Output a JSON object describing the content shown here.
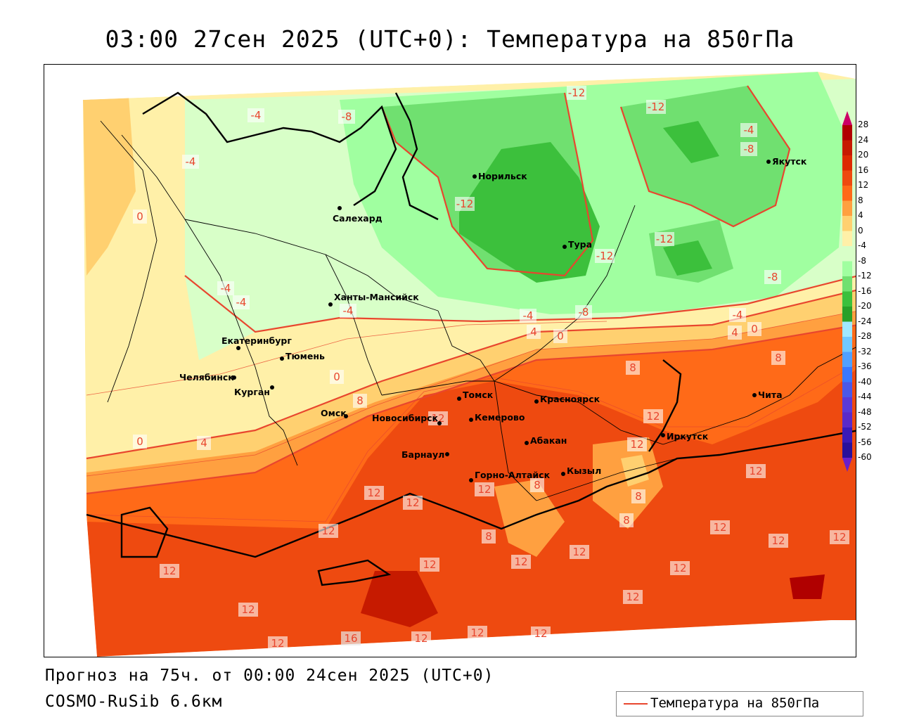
{
  "title": "03:00 27сен 2025 (UTC+0): Температура на 850гПа",
  "forecast_line": "Прогноз на 75ч. от 00:00 24сен 2025 (UTC+0)",
  "model_line": "COSMO-RuSib 6.6км",
  "legend_label": "Температура на 850гПа",
  "colors": {
    "isoline": "#e8462e",
    "scale_top": "#cc0066",
    "scale_bottom": "#6a1fc9"
  },
  "scale": {
    "values": [
      "28",
      "24",
      "20",
      "16",
      "12",
      "8",
      "4",
      "0",
      "-4",
      "-8",
      "-12",
      "-16",
      "-20",
      "-24",
      "-28",
      "-32",
      "-36",
      "-40",
      "-44",
      "-48",
      "-52",
      "-56",
      "-60"
    ],
    "colors": [
      "#b00000",
      "#c61a00",
      "#dd2a00",
      "#ee4a10",
      "#ff6a18",
      "#ffa040",
      "#ffd070",
      "#fff0a8",
      "#d8ffc8",
      "#a0ffa0",
      "#70e070",
      "#3cc03c",
      "#28a028",
      "#a0e8ff",
      "#70c8ff",
      "#50a0ff",
      "#3a78ff",
      "#4a58e8",
      "#5a3ad8",
      "#5a2ac8",
      "#3a1ab8",
      "#28109a",
      "#1a0a80"
    ]
  },
  "cities": [
    {
      "name": "Норильск"
    },
    {
      "name": "Якутск"
    },
    {
      "name": "Салехард"
    },
    {
      "name": "Тура"
    },
    {
      "name": "Ханты-Мансийск"
    },
    {
      "name": "Екатеринбург"
    },
    {
      "name": "Тюмень"
    },
    {
      "name": "Челябинск"
    },
    {
      "name": "Курган"
    },
    {
      "name": "Омск"
    },
    {
      "name": "Томск"
    },
    {
      "name": "Красноярск"
    },
    {
      "name": "Новосибирск"
    },
    {
      "name": "Кемерово"
    },
    {
      "name": "Абакан"
    },
    {
      "name": "Иркутск"
    },
    {
      "name": "Чита"
    },
    {
      "name": "Барнаул"
    },
    {
      "name": "Горно-Алтайск"
    },
    {
      "name": "Кызыл"
    }
  ],
  "isoline_labels": [
    "-4",
    "-8",
    "-12",
    "-12",
    "-4",
    "-8",
    "-4",
    "0",
    "-12",
    "-12",
    "-12",
    "-4",
    "-4",
    "-4",
    "-8",
    "-4",
    "4",
    "0",
    "-8",
    "-4",
    "4",
    "0",
    "0",
    "8",
    "8",
    "8",
    "12",
    "12",
    "12",
    "0",
    "4",
    "12",
    "12",
    "12",
    "12",
    "12",
    "12",
    "12",
    "12",
    "8",
    "8",
    "8",
    "8",
    "12",
    "12",
    "12",
    "12",
    "12",
    "12",
    "12",
    "16",
    "12",
    "12",
    "12",
    "12"
  ]
}
